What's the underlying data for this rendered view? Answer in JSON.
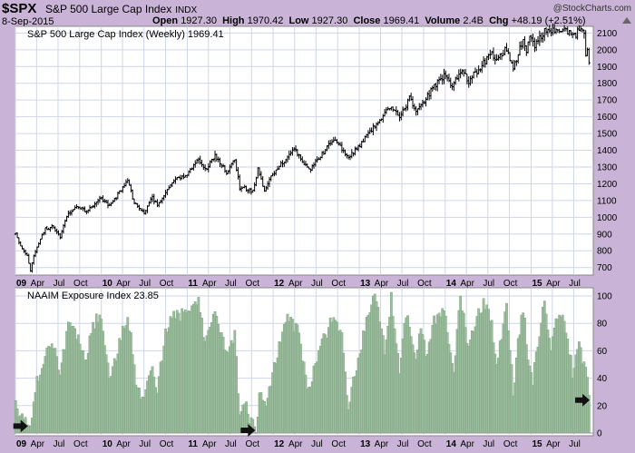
{
  "header": {
    "symbol": "$SPX",
    "name": "S&P 500 Large Cap Index",
    "exchange": "INDX",
    "copyright": "@StockCharts.com",
    "date": "8-Sep-2015",
    "open_label": "Open",
    "open": "1927.30",
    "high_label": "High",
    "high": "1970.42",
    "low_label": "Low",
    "low": "1927.30",
    "close_label": "Close",
    "close": "1969.41",
    "volume_label": "Volume",
    "volume": "2.4B",
    "chg_label": "Chg",
    "chg": "+48.19 (+2.51%)"
  },
  "colors": {
    "background": "#c9b3d6",
    "panel": "#ffffff",
    "grid": "#cfd6e8",
    "price_bars": "#000000",
    "exposure_fill": "#9dbd9f",
    "exposure_stroke": "#6f9a72",
    "arrows": "#111111"
  },
  "chart_data": [
    {
      "type": "ohlc",
      "title": "S&P 500 Large Cap Index (Weekly) 1969.41",
      "x_ticks": [
        "09",
        "Apr",
        "Jul",
        "Oct",
        "10",
        "Apr",
        "Jul",
        "Oct",
        "11",
        "Apr",
        "Jul",
        "Oct",
        "12",
        "Apr",
        "Jul",
        "Oct",
        "13",
        "Apr",
        "Jul",
        "Oct",
        "14",
        "Apr",
        "Jul",
        "Oct",
        "15",
        "Apr",
        "Jul"
      ],
      "y_ticks": [
        700,
        800,
        900,
        1000,
        1100,
        1200,
        1300,
        1400,
        1500,
        1600,
        1700,
        1800,
        1900,
        2000,
        2100
      ],
      "ylim": [
        655,
        2140
      ],
      "grid": true,
      "anchors": [
        {
          "date": "2009-01-02",
          "close": 900
        },
        {
          "date": "2009-01-23",
          "close": 830
        },
        {
          "date": "2009-02-20",
          "close": 770
        },
        {
          "date": "2009-03-06",
          "close": 683
        },
        {
          "date": "2009-03-20",
          "close": 770
        },
        {
          "date": "2009-04-17",
          "close": 870
        },
        {
          "date": "2009-05-08",
          "close": 930
        },
        {
          "date": "2009-06-12",
          "close": 945
        },
        {
          "date": "2009-07-10",
          "close": 880
        },
        {
          "date": "2009-08-07",
          "close": 1010
        },
        {
          "date": "2009-09-18",
          "close": 1065
        },
        {
          "date": "2009-10-30",
          "close": 1035
        },
        {
          "date": "2009-12-31",
          "close": 1115
        },
        {
          "date": "2010-02-05",
          "close": 1065
        },
        {
          "date": "2010-04-23",
          "close": 1217
        },
        {
          "date": "2010-05-21",
          "close": 1087
        },
        {
          "date": "2010-07-02",
          "close": 1022
        },
        {
          "date": "2010-08-06",
          "close": 1120
        },
        {
          "date": "2010-08-27",
          "close": 1065
        },
        {
          "date": "2010-11-05",
          "close": 1225
        },
        {
          "date": "2010-12-31",
          "close": 1257
        },
        {
          "date": "2011-02-18",
          "close": 1343
        },
        {
          "date": "2011-03-18",
          "close": 1280
        },
        {
          "date": "2011-04-29",
          "close": 1363
        },
        {
          "date": "2011-06-17",
          "close": 1270
        },
        {
          "date": "2011-07-22",
          "close": 1345
        },
        {
          "date": "2011-08-12",
          "close": 1178
        },
        {
          "date": "2011-09-02",
          "close": 1173
        },
        {
          "date": "2011-10-07",
          "close": 1155
        },
        {
          "date": "2011-10-28",
          "close": 1285
        },
        {
          "date": "2011-11-25",
          "close": 1158
        },
        {
          "date": "2011-12-30",
          "close": 1257
        },
        {
          "date": "2012-03-30",
          "close": 1408
        },
        {
          "date": "2012-06-01",
          "close": 1278
        },
        {
          "date": "2012-09-14",
          "close": 1465
        },
        {
          "date": "2012-11-16",
          "close": 1360
        },
        {
          "date": "2012-12-31",
          "close": 1426
        },
        {
          "date": "2013-03-15",
          "close": 1560
        },
        {
          "date": "2013-05-17",
          "close": 1667
        },
        {
          "date": "2013-06-21",
          "close": 1592
        },
        {
          "date": "2013-08-02",
          "close": 1709
        },
        {
          "date": "2013-08-30",
          "close": 1632
        },
        {
          "date": "2013-11-29",
          "close": 1806
        },
        {
          "date": "2013-12-31",
          "close": 1848
        },
        {
          "date": "2014-01-31",
          "close": 1782
        },
        {
          "date": "2014-03-07",
          "close": 1878
        },
        {
          "date": "2014-04-11",
          "close": 1815
        },
        {
          "date": "2014-07-18",
          "close": 1978
        },
        {
          "date": "2014-08-01",
          "close": 1925
        },
        {
          "date": "2014-09-19",
          "close": 2010
        },
        {
          "date": "2014-10-17",
          "close": 1886
        },
        {
          "date": "2014-11-28",
          "close": 2067
        },
        {
          "date": "2014-12-12",
          "close": 2002
        },
        {
          "date": "2014-12-26",
          "close": 2088
        },
        {
          "date": "2015-01-16",
          "close": 2019
        },
        {
          "date": "2015-03-02",
          "close": 2117
        },
        {
          "date": "2015-05-22",
          "close": 2126
        },
        {
          "date": "2015-07-10",
          "close": 2076
        },
        {
          "date": "2015-07-17",
          "close": 2126
        },
        {
          "date": "2015-08-14",
          "close": 2091
        },
        {
          "date": "2015-08-21",
          "close": 1971
        },
        {
          "date": "2015-08-28",
          "close": 1989
        },
        {
          "date": "2015-09-04",
          "close": 1921
        },
        {
          "date": "2015-09-08",
          "close": 1969
        }
      ]
    },
    {
      "type": "bar",
      "title": "NAAIM Exposure Index 23.85",
      "x_ticks": [
        "09",
        "Apr",
        "Jul",
        "Oct",
        "10",
        "Apr",
        "Jul",
        "Oct",
        "11",
        "Apr",
        "Jul",
        "Oct",
        "12",
        "Apr",
        "Jul",
        "Oct",
        "13",
        "Apr",
        "Jul",
        "Oct",
        "14",
        "Apr",
        "Jul",
        "Oct",
        "15",
        "Apr",
        "Jul"
      ],
      "y_ticks": [
        0,
        20,
        40,
        60,
        80,
        100
      ],
      "ylim": [
        -2,
        106
      ],
      "grid": true,
      "anchors": [
        {
          "date": "2009-01-02",
          "value": 22
        },
        {
          "date": "2009-01-30",
          "value": 10
        },
        {
          "date": "2009-03-06",
          "value": 6
        },
        {
          "date": "2009-04-03",
          "value": 38
        },
        {
          "date": "2009-05-08",
          "value": 58
        },
        {
          "date": "2009-06-05",
          "value": 70
        },
        {
          "date": "2009-07-10",
          "value": 42
        },
        {
          "date": "2009-08-14",
          "value": 78
        },
        {
          "date": "2009-09-18",
          "value": 72
        },
        {
          "date": "2009-10-30",
          "value": 55
        },
        {
          "date": "2009-11-27",
          "value": 80
        },
        {
          "date": "2009-12-31",
          "value": 85
        },
        {
          "date": "2010-02-05",
          "value": 38
        },
        {
          "date": "2010-04-23",
          "value": 88
        },
        {
          "date": "2010-05-28",
          "value": 40
        },
        {
          "date": "2010-07-02",
          "value": 22
        },
        {
          "date": "2010-08-06",
          "value": 50
        },
        {
          "date": "2010-08-27",
          "value": 30
        },
        {
          "date": "2010-10-01",
          "value": 75
        },
        {
          "date": "2010-11-05",
          "value": 88
        },
        {
          "date": "2010-12-31",
          "value": 85
        },
        {
          "date": "2011-02-18",
          "value": 95
        },
        {
          "date": "2011-03-18",
          "value": 68
        },
        {
          "date": "2011-04-29",
          "value": 92
        },
        {
          "date": "2011-06-17",
          "value": 60
        },
        {
          "date": "2011-07-22",
          "value": 70
        },
        {
          "date": "2011-08-12",
          "value": 15
        },
        {
          "date": "2011-09-02",
          "value": 25
        },
        {
          "date": "2011-09-23",
          "value": 8
        },
        {
          "date": "2011-10-07",
          "value": 6
        },
        {
          "date": "2011-10-21",
          "value": -2
        },
        {
          "date": "2011-11-04",
          "value": 30
        },
        {
          "date": "2011-11-25",
          "value": 18
        },
        {
          "date": "2012-01-13",
          "value": 55
        },
        {
          "date": "2012-03-02",
          "value": 85
        },
        {
          "date": "2012-04-13",
          "value": 75
        },
        {
          "date": "2012-06-01",
          "value": 30
        },
        {
          "date": "2012-07-13",
          "value": 60
        },
        {
          "date": "2012-09-14",
          "value": 85
        },
        {
          "date": "2012-10-19",
          "value": 70
        },
        {
          "date": "2012-11-16",
          "value": 20
        },
        {
          "date": "2012-12-28",
          "value": 55
        },
        {
          "date": "2013-02-01",
          "value": 80
        },
        {
          "date": "2013-03-08",
          "value": 104
        },
        {
          "date": "2013-04-19",
          "value": 60
        },
        {
          "date": "2013-05-17",
          "value": 98
        },
        {
          "date": "2013-06-21",
          "value": 45
        },
        {
          "date": "2013-07-19",
          "value": 88
        },
        {
          "date": "2013-08-30",
          "value": 50
        },
        {
          "date": "2013-09-20",
          "value": 80
        },
        {
          "date": "2013-10-11",
          "value": 55
        },
        {
          "date": "2013-11-15",
          "value": 82
        },
        {
          "date": "2013-12-27",
          "value": 88
        },
        {
          "date": "2014-02-07",
          "value": 48
        },
        {
          "date": "2014-03-07",
          "value": 100
        },
        {
          "date": "2014-04-11",
          "value": 62
        },
        {
          "date": "2014-05-23",
          "value": 88
        },
        {
          "date": "2014-06-20",
          "value": 95
        },
        {
          "date": "2014-07-18",
          "value": 80
        },
        {
          "date": "2014-08-08",
          "value": 52
        },
        {
          "date": "2014-09-19",
          "value": 92
        },
        {
          "date": "2014-10-17",
          "value": 30
        },
        {
          "date": "2014-11-07",
          "value": 65
        },
        {
          "date": "2014-11-28",
          "value": 92
        },
        {
          "date": "2014-12-19",
          "value": 58
        },
        {
          "date": "2015-01-09",
          "value": 40
        },
        {
          "date": "2015-02-27",
          "value": 95
        },
        {
          "date": "2015-03-27",
          "value": 60
        },
        {
          "date": "2015-04-24",
          "value": 88
        },
        {
          "date": "2015-05-29",
          "value": 78
        },
        {
          "date": "2015-06-26",
          "value": 45
        },
        {
          "date": "2015-07-24",
          "value": 62
        },
        {
          "date": "2015-08-21",
          "value": 48
        },
        {
          "date": "2015-08-28",
          "value": 38
        },
        {
          "date": "2015-09-04",
          "value": 24
        }
      ],
      "annotations": [
        {
          "type": "arrow-right",
          "date": "2009-01-23",
          "value": 5
        },
        {
          "type": "arrow-right",
          "date": "2011-09-16",
          "value": 2
        },
        {
          "type": "arrow-right",
          "date": "2015-08-07",
          "value": 24
        }
      ]
    }
  ]
}
